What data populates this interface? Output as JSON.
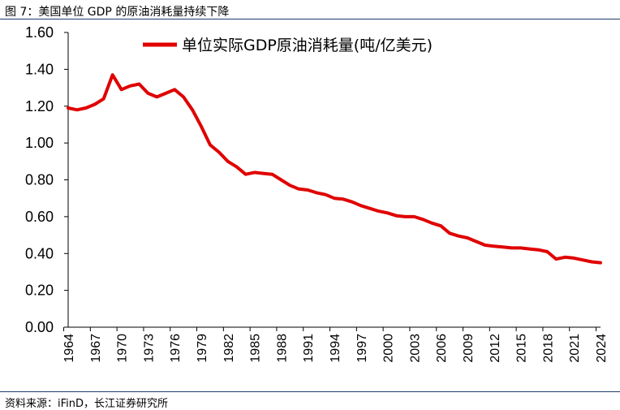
{
  "figure_title": "图 7：美国单位 GDP 的原油消耗量持续下降",
  "source": "资料来源：iFinD，长江证券研究所",
  "chart_data": {
    "type": "line",
    "title": "",
    "xlabel": "",
    "ylabel": "",
    "ylim": [
      0,
      1.6
    ],
    "y_ticks": [
      "0.00",
      "0.20",
      "0.40",
      "0.60",
      "0.80",
      "1.00",
      "1.20",
      "1.40",
      "1.60"
    ],
    "x_tick_labels": [
      "1964",
      "1967",
      "1970",
      "1973",
      "1976",
      "1979",
      "1982",
      "1985",
      "1988",
      "1991",
      "1994",
      "1997",
      "2000",
      "2003",
      "2006",
      "2009",
      "2012",
      "2015",
      "2018",
      "2021",
      "2024"
    ],
    "grid": false,
    "legend": "top",
    "series": [
      {
        "name": "单位实际GDP原油消耗量(吨/亿美元)",
        "color": "#e00000",
        "x": [
          1964,
          1965,
          1966,
          1967,
          1968,
          1969,
          1970,
          1971,
          1972,
          1973,
          1974,
          1975,
          1976,
          1977,
          1978,
          1979,
          1980,
          1981,
          1982,
          1983,
          1984,
          1985,
          1986,
          1987,
          1988,
          1989,
          1990,
          1991,
          1992,
          1993,
          1994,
          1995,
          1996,
          1997,
          1998,
          1999,
          2000,
          2001,
          2002,
          2003,
          2004,
          2005,
          2006,
          2007,
          2008,
          2009,
          2010,
          2011,
          2012,
          2013,
          2014,
          2015,
          2016,
          2017,
          2018,
          2019,
          2020,
          2021,
          2022,
          2023,
          2024
        ],
        "values": [
          1.19,
          1.18,
          1.19,
          1.21,
          1.24,
          1.37,
          1.29,
          1.31,
          1.32,
          1.27,
          1.25,
          1.27,
          1.29,
          1.25,
          1.18,
          1.09,
          0.99,
          0.95,
          0.9,
          0.87,
          0.83,
          0.84,
          0.835,
          0.83,
          0.8,
          0.77,
          0.75,
          0.745,
          0.73,
          0.72,
          0.7,
          0.695,
          0.68,
          0.66,
          0.645,
          0.63,
          0.62,
          0.605,
          0.6,
          0.6,
          0.585,
          0.565,
          0.55,
          0.51,
          0.495,
          0.485,
          0.465,
          0.445,
          0.44,
          0.435,
          0.43,
          0.43,
          0.425,
          0.42,
          0.41,
          0.37,
          0.38,
          0.375,
          0.365,
          0.355,
          0.35
        ]
      }
    ]
  }
}
